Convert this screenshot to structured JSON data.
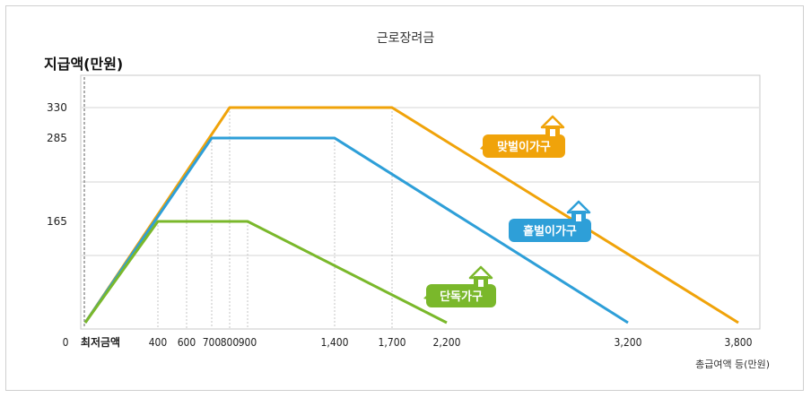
{
  "chart_data": {
    "type": "line",
    "title": "근로장려금",
    "ylabel": "지급액(만원)",
    "xlabel": "총급여액 등(만원)",
    "x_ticks": [
      {
        "value": 0,
        "label": "0"
      },
      {
        "value": 48,
        "label": "최저금액"
      },
      {
        "value": 400,
        "label": "400"
      },
      {
        "value": 600,
        "label": "600"
      },
      {
        "value": 700,
        "label": "700"
      },
      {
        "value": 800,
        "label": "800"
      },
      {
        "value": 900,
        "label": "900"
      },
      {
        "value": 1400,
        "label": "1,400"
      },
      {
        "value": 1700,
        "label": "1,700"
      },
      {
        "value": 2200,
        "label": "2,200"
      },
      {
        "value": 3200,
        "label": "3,200"
      },
      {
        "value": 3800,
        "label": "3,800"
      }
    ],
    "y_ticks": [
      {
        "value": 165,
        "label": "165"
      },
      {
        "value": 285,
        "label": "285"
      },
      {
        "value": 330,
        "label": "330"
      }
    ],
    "ylim": [
      0,
      360
    ],
    "grid": true,
    "series": [
      {
        "name": "맞벌이가구",
        "color": "#f0a30a",
        "points": [
          [
            0,
            0
          ],
          [
            800,
            330
          ],
          [
            1700,
            330
          ],
          [
            3800,
            0
          ]
        ]
      },
      {
        "name": "홑벌이가구",
        "color": "#2e9fd8",
        "points": [
          [
            0,
            0
          ],
          [
            700,
            285
          ],
          [
            1400,
            285
          ],
          [
            3200,
            0
          ]
        ]
      },
      {
        "name": "단독가구",
        "color": "#7ab82b",
        "points": [
          [
            0,
            0
          ],
          [
            400,
            165
          ],
          [
            900,
            165
          ],
          [
            2200,
            0
          ]
        ]
      }
    ]
  }
}
